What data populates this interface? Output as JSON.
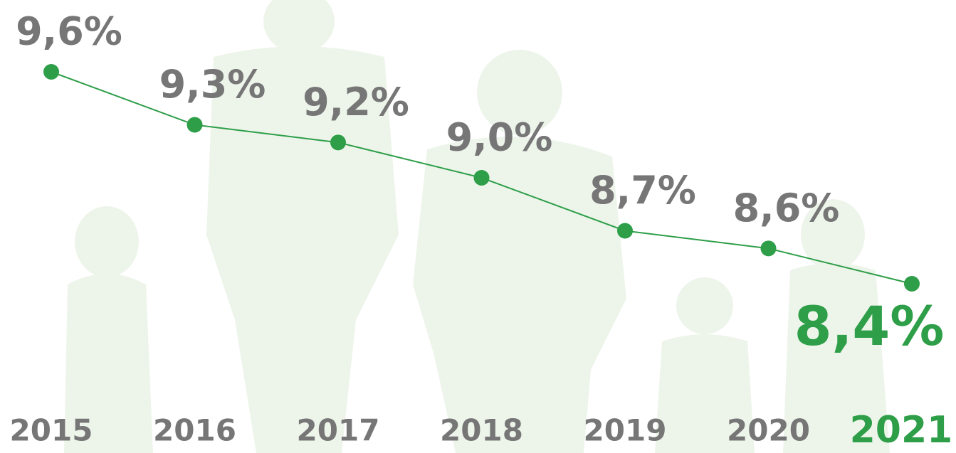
{
  "chart_data": {
    "type": "line",
    "categories": [
      "2015",
      "2016",
      "2017",
      "2018",
      "2019",
      "2020",
      "2021"
    ],
    "values": [
      9.6,
      9.3,
      9.2,
      9.0,
      8.7,
      8.6,
      8.4
    ],
    "value_labels": [
      "9,6%",
      "9,3%",
      "9,2%",
      "9,0%",
      "8,7%",
      "8,6%",
      "8,4%"
    ],
    "color": "#2e9e48",
    "label_color": "#767676",
    "highlight_color": "#2e9e48"
  }
}
